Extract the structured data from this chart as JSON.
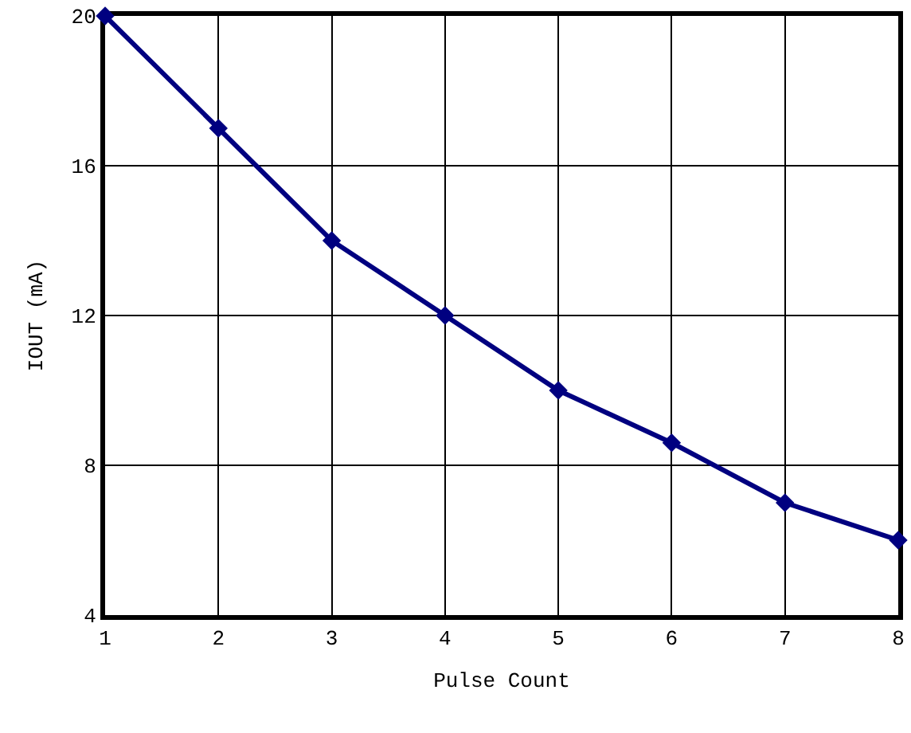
{
  "chart_data": {
    "type": "line",
    "xlabel": "Pulse Count",
    "ylabel": "IOUT (mA)",
    "x": [
      1,
      2,
      3,
      4,
      5,
      6,
      7,
      8
    ],
    "series": [
      {
        "color": "#000080",
        "values": [
          20,
          17,
          14,
          12,
          10,
          8.6,
          7,
          6
        ]
      }
    ],
    "xlim": [
      1,
      8
    ],
    "xticks": [
      1,
      2,
      3,
      4,
      5,
      6,
      7,
      8
    ],
    "ylim": [
      4,
      20
    ],
    "yticks": [
      4,
      8,
      12,
      16,
      20
    ],
    "grid": true,
    "legend": false,
    "marker": "diamond",
    "line_style": "solid"
  }
}
